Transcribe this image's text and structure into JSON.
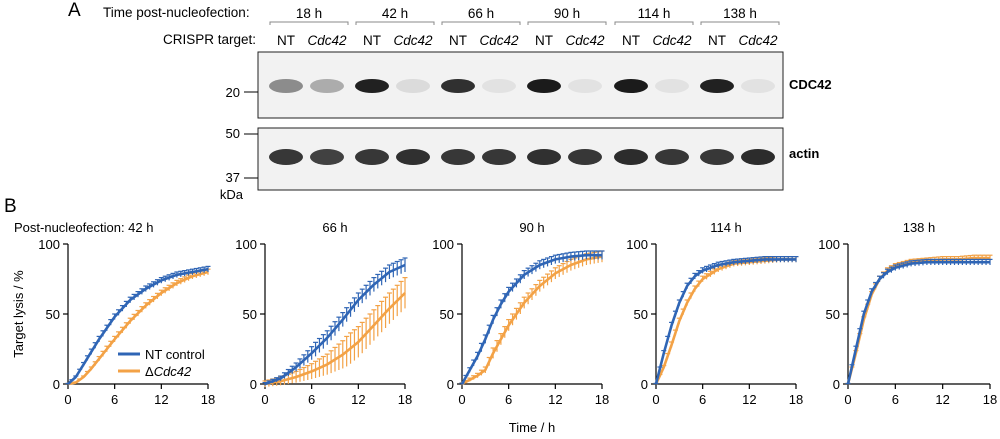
{
  "panel_a": {
    "letter": "A",
    "time_label": "Time post-nucleofection:",
    "target_label": "CRISPR target:",
    "timepoints": [
      "18 h",
      "42 h",
      "66 h",
      "90 h",
      "114 h",
      "138 h"
    ],
    "lanes": [
      "NT",
      "Cdc42"
    ],
    "blots": [
      {
        "name": "CDC42",
        "markers": [
          "20"
        ],
        "band_intensity": [
          0.45,
          0.3,
          0.95,
          0.08,
          0.88,
          0.05,
          0.98,
          0.05,
          0.98,
          0.05,
          0.95,
          0.05
        ]
      },
      {
        "name": "actin",
        "markers": [
          "50",
          "37"
        ],
        "band_intensity": [
          0.85,
          0.8,
          0.85,
          0.88,
          0.85,
          0.85,
          0.88,
          0.85,
          0.9,
          0.85,
          0.85,
          0.9
        ]
      }
    ],
    "unit_label": "kDa"
  },
  "panel_b": {
    "letter": "B",
    "ylabel": "Target lysis / %",
    "xlabel": "Time / h",
    "legend": [
      {
        "name": "NT control",
        "color": "#2f65b5"
      },
      {
        "name": "ΔCdc42",
        "name_prefix": "Δ",
        "name_italic": "Cdc42",
        "color": "#f3a246"
      }
    ]
  },
  "chart_data": [
    {
      "type": "line",
      "title": "Post-nucleofection: 42 h",
      "xlim": [
        0,
        18
      ],
      "ylim": [
        0,
        100
      ],
      "xticks": [
        0,
        6,
        12,
        18
      ],
      "yticks": [
        0,
        50,
        100
      ],
      "series": [
        {
          "name": "NT control",
          "x": [
            0,
            1,
            2,
            3,
            4,
            5,
            6,
            8,
            10,
            12,
            14,
            16,
            18
          ],
          "y": [
            0,
            5,
            14,
            23,
            32,
            40,
            48,
            60,
            68,
            74,
            78,
            80,
            82
          ],
          "err": 2
        },
        {
          "name": "ΔCdc42",
          "x": [
            0,
            1,
            2,
            3,
            4,
            5,
            6,
            8,
            10,
            12,
            14,
            16,
            18
          ],
          "y": [
            0,
            1,
            5,
            11,
            18,
            25,
            32,
            45,
            56,
            65,
            72,
            77,
            80
          ],
          "err": 2
        }
      ]
    },
    {
      "type": "line",
      "title": "66 h",
      "xlim": [
        0,
        18
      ],
      "ylim": [
        0,
        100
      ],
      "xticks": [
        0,
        6,
        12,
        18
      ],
      "yticks": [
        0,
        50,
        100
      ],
      "series": [
        {
          "name": "NT control",
          "x": [
            0,
            2,
            4,
            6,
            8,
            10,
            12,
            14,
            16,
            18
          ],
          "y": [
            0,
            4,
            12,
            22,
            33,
            46,
            60,
            71,
            80,
            85
          ],
          "err": 5
        },
        {
          "name": "ΔCdc42",
          "x": [
            0,
            2,
            4,
            6,
            8,
            10,
            12,
            14,
            16,
            18
          ],
          "y": [
            0,
            2,
            5,
            9,
            14,
            21,
            30,
            42,
            54,
            65
          ],
          "err": 11
        }
      ]
    },
    {
      "type": "line",
      "title": "90 h",
      "xlim": [
        0,
        18
      ],
      "ylim": [
        0,
        100
      ],
      "xticks": [
        0,
        6,
        12,
        18
      ],
      "yticks": [
        0,
        50,
        100
      ],
      "series": [
        {
          "name": "NT control",
          "x": [
            0,
            1,
            2,
            3,
            4,
            5,
            6,
            8,
            10,
            12,
            14,
            16,
            18
          ],
          "y": [
            0,
            10,
            20,
            32,
            46,
            57,
            66,
            78,
            85,
            89,
            91,
            92,
            92
          ],
          "err": 3
        },
        {
          "name": "ΔCdc42",
          "x": [
            0,
            1,
            2,
            3,
            4,
            5,
            6,
            8,
            10,
            12,
            14,
            16,
            18
          ],
          "y": [
            0,
            3,
            6,
            10,
            22,
            32,
            42,
            58,
            70,
            79,
            85,
            89,
            91
          ],
          "err": 4
        }
      ]
    },
    {
      "type": "line",
      "title": "114 h",
      "xlim": [
        0,
        18
      ],
      "ylim": [
        0,
        100
      ],
      "xticks": [
        0,
        6,
        12,
        18
      ],
      "yticks": [
        0,
        50,
        100
      ],
      "series": [
        {
          "name": "NT control",
          "x": [
            0,
            1,
            2,
            3,
            4,
            5,
            6,
            8,
            10,
            12,
            14,
            16,
            18
          ],
          "y": [
            0,
            22,
            42,
            58,
            70,
            77,
            81,
            85,
            87,
            88,
            89,
            89,
            89
          ],
          "err": 2
        },
        {
          "name": "ΔCdc42",
          "x": [
            0,
            1,
            2,
            3,
            4,
            5,
            6,
            8,
            10,
            12,
            14,
            16,
            18
          ],
          "y": [
            0,
            12,
            28,
            45,
            58,
            68,
            75,
            82,
            86,
            87,
            88,
            89,
            89
          ],
          "err": 2
        }
      ]
    },
    {
      "type": "line",
      "title": "138 h",
      "xlim": [
        0,
        18
      ],
      "ylim": [
        0,
        100
      ],
      "xticks": [
        0,
        6,
        12,
        18
      ],
      "yticks": [
        0,
        50,
        100
      ],
      "series": [
        {
          "name": "NT control",
          "x": [
            0,
            1,
            2,
            3,
            4,
            5,
            6,
            8,
            10,
            12,
            14,
            16,
            18
          ],
          "y": [
            0,
            25,
            50,
            66,
            75,
            80,
            83,
            86,
            87,
            87,
            87,
            87,
            87
          ],
          "err": 2
        },
        {
          "name": "ΔCdc42",
          "x": [
            0,
            1,
            2,
            3,
            4,
            5,
            6,
            8,
            10,
            12,
            14,
            16,
            18
          ],
          "y": [
            0,
            22,
            46,
            64,
            75,
            81,
            84,
            87,
            88,
            89,
            89,
            90,
            90
          ],
          "err": 2
        }
      ]
    }
  ]
}
